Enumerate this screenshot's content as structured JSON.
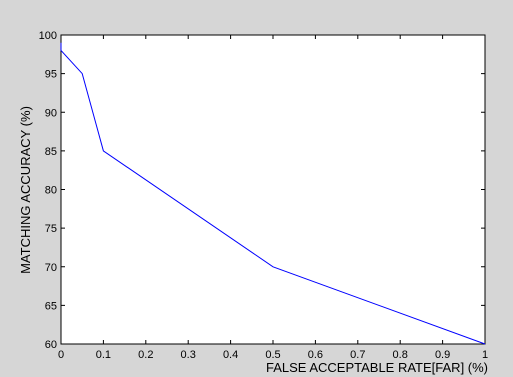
{
  "chart_data": {
    "type": "line",
    "title": "",
    "xlabel": "FALSE ACCEPTABLE RATE[FAR] (%)",
    "ylabel": "MATCHING ACCURACY (%)",
    "xlim": [
      0,
      1
    ],
    "ylim": [
      60,
      100
    ],
    "x_ticks": [
      "0",
      "0.1",
      "0.2",
      "0.3",
      "0.4",
      "0.5",
      "0.6",
      "0.7",
      "0.8",
      "0.9",
      "1"
    ],
    "y_ticks": [
      "60",
      "65",
      "70",
      "75",
      "80",
      "85",
      "90",
      "95",
      "100"
    ],
    "grid": false,
    "legend": "none",
    "series": [
      {
        "color": "#0000ff",
        "x": [
          0,
          0,
          0.05,
          0.1,
          0.5,
          1
        ],
        "y": [
          99,
          98,
          95,
          85,
          70,
          60
        ]
      }
    ]
  },
  "colors": {
    "background": "#d6d6d6",
    "plot_area": "#ffffff",
    "axis": "#000000"
  }
}
